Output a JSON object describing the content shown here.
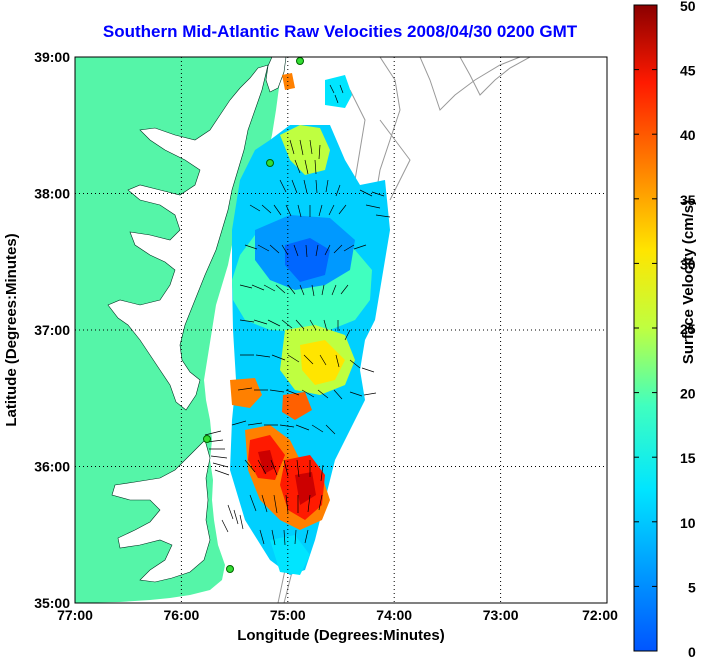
{
  "title": "Southern Mid-Atlantic Raw Velocities 2008/04/30 0200 GMT",
  "map": {
    "x_axis": {
      "label": "Longitude (Degrees:Minutes)",
      "ticks": [
        "77:00",
        "76:00",
        "75:00",
        "74:00",
        "73:00",
        "72:00"
      ]
    },
    "y_axis": {
      "label": "Latitude (Degrees:Minutes)",
      "ticks": [
        "39:00",
        "38:00",
        "37:00",
        "36:00",
        "35:00"
      ]
    }
  },
  "colorbar": {
    "label": "Surface Velocity (cm/s)",
    "ticks": [
      "50",
      "45",
      "40",
      "35",
      "30",
      "25",
      "20",
      "15",
      "10",
      "5",
      "0"
    ],
    "range": [
      0,
      50
    ],
    "colormap": "jet"
  },
  "colors": {
    "land": "#55f5a8",
    "water": "#ffffff",
    "title": "#0000ff",
    "station": "#33dd33",
    "bathymetry": "#999999"
  }
}
